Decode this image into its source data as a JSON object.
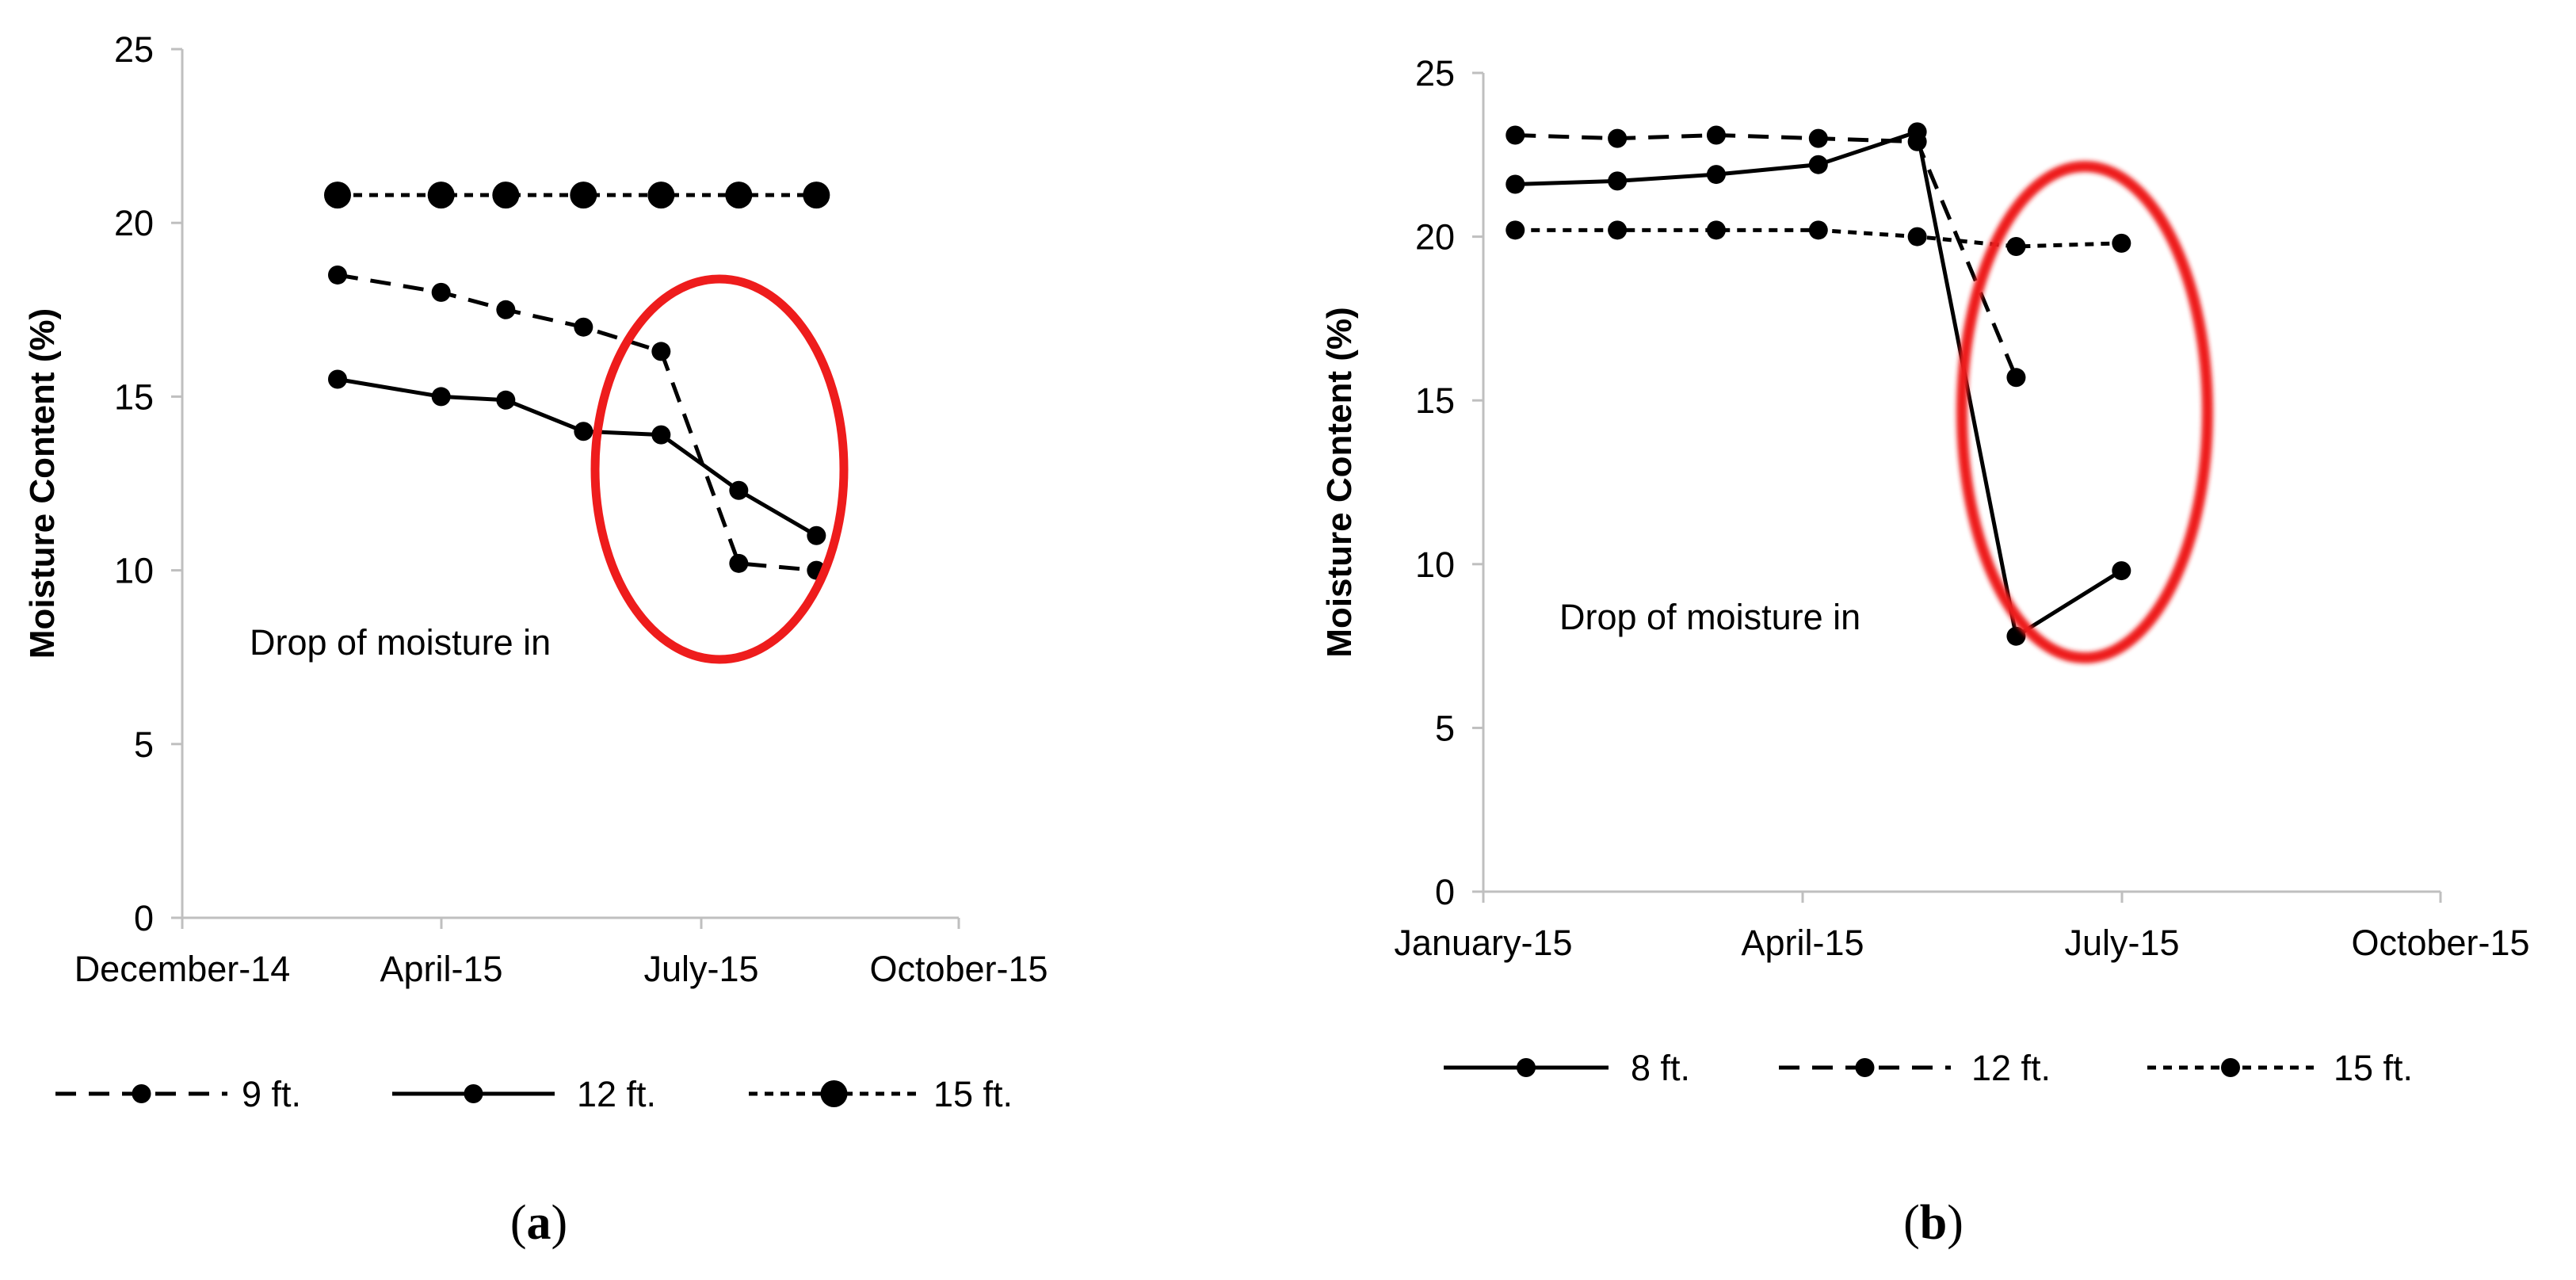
{
  "chart_data": [
    {
      "id": "a",
      "type": "line",
      "caption_open": "(",
      "caption_letter": "a",
      "caption_close": ")",
      "ylabel": "Moisture Content (%)",
      "ylim": [
        0,
        25
      ],
      "yticks": [
        0,
        5,
        10,
        15,
        20,
        25
      ],
      "xticks": [
        "December-14",
        "April-15",
        "July-15",
        "October-15"
      ],
      "annotation": "Drop of moisture in",
      "series": [
        {
          "name": "9 ft.",
          "style": "dashed",
          "marker": "small",
          "x": [
            0.6,
            1.0,
            1.25,
            1.55,
            1.85,
            2.15,
            2.45
          ],
          "values": [
            18.5,
            18.0,
            17.5,
            17.0,
            16.3,
            10.2,
            10.0
          ]
        },
        {
          "name": "12 ft.",
          "style": "solid",
          "marker": "small",
          "x": [
            0.6,
            1.0,
            1.25,
            1.55,
            1.85,
            2.15,
            2.45
          ],
          "values": [
            15.5,
            15.0,
            14.9,
            14.0,
            13.9,
            12.3,
            11.0
          ]
        },
        {
          "name": "15 ft.",
          "style": "dotted",
          "marker": "large",
          "x": [
            0.6,
            1.0,
            1.25,
            1.55,
            1.85,
            2.15,
            2.45
          ],
          "values": [
            20.8,
            20.8,
            20.8,
            20.8,
            20.8,
            20.8,
            20.8
          ]
        }
      ]
    },
    {
      "id": "b",
      "type": "line",
      "caption_open": "(",
      "caption_letter": "b",
      "caption_close": ")",
      "ylabel": "Moisture Content (%)",
      "ylim": [
        0,
        25
      ],
      "yticks": [
        0,
        5,
        10,
        15,
        20,
        25
      ],
      "xticks": [
        "January-15",
        "April-15",
        "July-15",
        "October-15"
      ],
      "annotation": "Drop of moisture in",
      "series": [
        {
          "name": "8 ft.",
          "style": "solid",
          "marker": "small",
          "x": [
            0.1,
            0.42,
            0.73,
            1.05,
            1.36,
            1.67,
            2.0
          ],
          "values": [
            21.6,
            21.7,
            21.9,
            22.2,
            23.2,
            7.8,
            9.8
          ]
        },
        {
          "name": "12 ft.",
          "style": "dashed",
          "marker": "small",
          "x": [
            0.1,
            0.42,
            0.73,
            1.05,
            1.36,
            1.67
          ],
          "values": [
            23.1,
            23.0,
            23.1,
            23.0,
            22.9,
            15.7
          ]
        },
        {
          "name": "15 ft.",
          "style": "dotted",
          "marker": "small",
          "x": [
            0.1,
            0.42,
            0.73,
            1.05,
            1.36,
            1.67,
            2.0
          ],
          "values": [
            20.2,
            20.2,
            20.2,
            20.2,
            20.0,
            19.7,
            19.8
          ]
        }
      ]
    }
  ]
}
